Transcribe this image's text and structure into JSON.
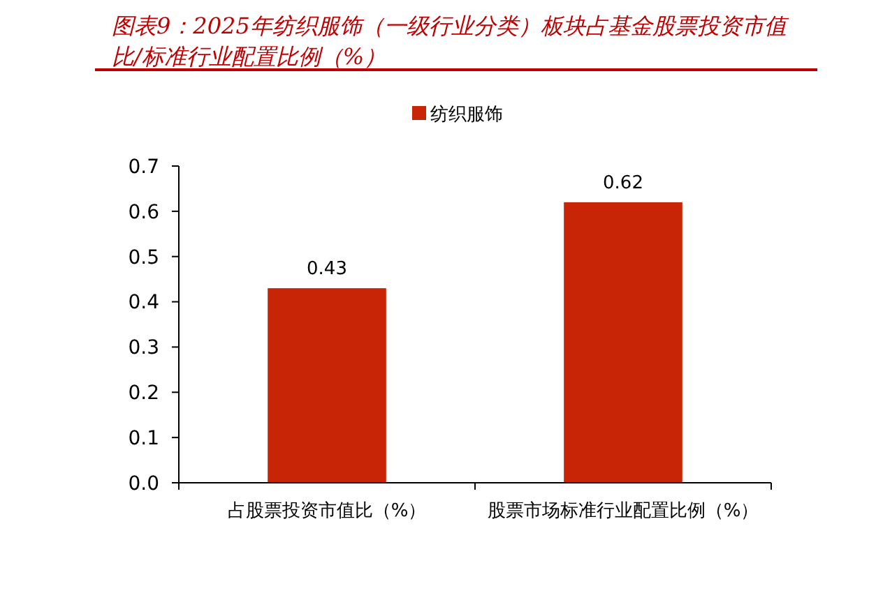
{
  "chart_data": {
    "type": "bar",
    "title": "图表9：2025年纺织服饰（一级行业分类）板块占基金股票投资市值比/标准行业配置比例（%）",
    "categories": [
      "占股票投资市值比（%）",
      "股票市场标准行业配置比例（%）"
    ],
    "series": [
      {
        "name": "纺织服饰",
        "color": "#c82506",
        "values": [
          0.43,
          0.62
        ]
      }
    ],
    "ylim": [
      0,
      0.7
    ],
    "yticks": [
      {
        "value": 0,
        "label": "0.0"
      },
      {
        "value": 0.1,
        "label": "0.1"
      },
      {
        "value": 0.2,
        "label": "0.2"
      },
      {
        "value": 0.3,
        "label": "0.3"
      },
      {
        "value": 0.4,
        "label": "0.4"
      },
      {
        "value": 0.5,
        "label": "0.5"
      },
      {
        "value": 0.6,
        "label": "0.6"
      },
      {
        "value": 0.7,
        "label": "0.7"
      }
    ],
    "data_labels": true,
    "legend": "top",
    "grid": false
  }
}
